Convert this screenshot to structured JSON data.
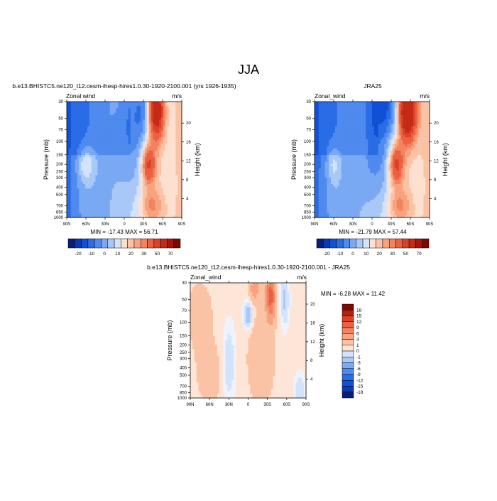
{
  "figure": {
    "title": "JJA"
  },
  "chart_data": [
    {
      "type": "heatmap",
      "title": "b.e13.BHISTC5.ne120_t12.cesm-ihesp-hires1.0.30-1920-2100.001 (yrs 1926-1935)",
      "left_label": "Zonal wind",
      "units": "m/s",
      "ylabel": "Pressure (mb)",
      "ylabel_right": "Height (km)",
      "x_ticks": [
        "90N",
        "60N",
        "30N",
        "0",
        "30S",
        "60S",
        "90S"
      ],
      "y_ticks": [
        "30",
        "50",
        "70",
        "100",
        "150",
        "200",
        "250",
        "300",
        "400",
        "500",
        "700",
        "850",
        "1000"
      ],
      "y_ticks_right": [
        "20",
        "16",
        "12",
        "8",
        "4"
      ],
      "stats": "MIN = -17.43  MAX = 56.71",
      "min": -17.43,
      "max": 56.71,
      "features": [
        {
          "lat": -40,
          "p": 35,
          "value": -20,
          "sx": 22,
          "sy": 0.75
        },
        {
          "lat": -15,
          "p": 120,
          "value": -10,
          "sx": 18,
          "sy": 1.0
        },
        {
          "lat": 60,
          "p": 200,
          "value": 15,
          "sx": 10,
          "sy": 0.38
        },
        {
          "lat": 60,
          "p": 600,
          "value": 5,
          "sx": 15,
          "sy": 0.6
        },
        {
          "lat": -50,
          "p": 40,
          "value": 70,
          "sx": 9,
          "sy": 0.6
        },
        {
          "lat": -38,
          "p": 200,
          "value": 35,
          "sx": 8,
          "sy": 0.45
        },
        {
          "lat": -42,
          "p": 700,
          "value": 15,
          "sx": 12,
          "sy": 0.35
        },
        {
          "lat": -75,
          "p": 400,
          "value": -5,
          "sx": 10,
          "sy": 1.0
        }
      ],
      "colorbar": {
        "labels": [
          "-20",
          "-10",
          "0",
          "10",
          "20",
          "30",
          "50",
          "70"
        ]
      }
    },
    {
      "type": "heatmap",
      "title": "JRA25",
      "left_label": "Zonal_wind",
      "units": "m/s",
      "ylabel": "Pressure (mb)",
      "ylabel_right": "Height (km)",
      "x_ticks": [
        "90N",
        "60N",
        "30N",
        "0",
        "30S",
        "60S",
        "90S"
      ],
      "y_ticks": [
        "30",
        "50",
        "70",
        "100",
        "150",
        "200",
        "250",
        "300",
        "400",
        "500",
        "700",
        "850",
        "1000"
      ],
      "y_ticks_right": [
        "20",
        "16",
        "12",
        "8",
        "4"
      ],
      "stats": "MIN = -21.79  MAX = 57.44",
      "min": -21.79,
      "max": 57.44,
      "features": [
        {
          "lat": -20,
          "p": 30,
          "value": -22,
          "sx": 18,
          "sy": 0.75
        },
        {
          "lat": -10,
          "p": 150,
          "value": -12,
          "sx": 18,
          "sy": 1.0
        },
        {
          "lat": 60,
          "p": 200,
          "value": 12,
          "sx": 8,
          "sy": 0.4
        },
        {
          "lat": 60,
          "p": 600,
          "value": 5,
          "sx": 15,
          "sy": 0.6
        },
        {
          "lat": -55,
          "p": 40,
          "value": 70,
          "sx": 9,
          "sy": 0.6
        },
        {
          "lat": -38,
          "p": 200,
          "value": 35,
          "sx": 8,
          "sy": 0.45
        },
        {
          "lat": -42,
          "p": 700,
          "value": 15,
          "sx": 12,
          "sy": 0.35
        },
        {
          "lat": -75,
          "p": 400,
          "value": -5,
          "sx": 10,
          "sy": 1.0
        }
      ],
      "colorbar": {
        "labels": [
          "-20",
          "-10",
          "0",
          "10",
          "20",
          "30",
          "50",
          "70"
        ]
      }
    },
    {
      "type": "heatmap",
      "title": "b.e13.BHISTC5.ne120_t12.cesm-ihesp-hires1.0.30-1920-2100.001 - JRA25",
      "left_label": "Zonal_wind",
      "units": "m/s",
      "ylabel": "Pressure (mb)",
      "ylabel_right": "Height (km)",
      "x_ticks": [
        "90N",
        "60N",
        "30N",
        "0",
        "30S",
        "60S",
        "90S"
      ],
      "y_ticks": [
        "30",
        "50",
        "70",
        "100",
        "150",
        "200",
        "250",
        "300",
        "400",
        "500",
        "700",
        "850",
        "1000"
      ],
      "y_ticks_right": [
        "20",
        "16",
        "12",
        "8",
        "4"
      ],
      "stats": "MIN =  -6.28  MAX =  11.42",
      "min": -6.28,
      "max": 11.42,
      "features": [
        {
          "lat": 0,
          "p": 80,
          "value": -6,
          "sx": 4,
          "sy": 0.25
        },
        {
          "lat": -35,
          "p": 45,
          "value": 10,
          "sx": 5,
          "sy": 0.5
        },
        {
          "lat": -10,
          "p": 35,
          "value": 5,
          "sx": 5,
          "sy": 0.25
        },
        {
          "lat": -57,
          "p": 50,
          "value": -4,
          "sx": 4,
          "sy": 0.5
        },
        {
          "lat": 30,
          "p": 350,
          "value": -3,
          "sx": 6,
          "sy": 0.7
        },
        {
          "lat": 75,
          "p": 80,
          "value": 1.5,
          "sx": 15,
          "sy": 0.8
        },
        {
          "lat": -20,
          "p": 300,
          "value": 2,
          "sx": 15,
          "sy": 1.0
        },
        {
          "lat": 60,
          "p": 500,
          "value": 1.5,
          "sx": 15,
          "sy": 0.7
        },
        {
          "lat": -80,
          "p": 800,
          "value": -3,
          "sx": 5,
          "sy": 0.3
        }
      ],
      "colorbar": {
        "labels": [
          "18",
          "15",
          "12",
          "9",
          "6",
          "3",
          "1",
          "0",
          "-1",
          "-3",
          "-6",
          "-9",
          "-12",
          "-15",
          "-18"
        ]
      }
    }
  ],
  "colors": {
    "abs_levels": [
      -25,
      -20,
      -15,
      -10,
      -5,
      0,
      5,
      10,
      15,
      20,
      25,
      30,
      40,
      50,
      60,
      70,
      80
    ],
    "abs_palette": [
      "#06207a",
      "#0a3ab0",
      "#1050d6",
      "#2a6ce6",
      "#4f8aee",
      "#7aa9f3",
      "#a8c8f8",
      "#d3e3fb",
      "#fde0cf",
      "#fbc3a6",
      "#f8a37f",
      "#f3825f",
      "#ea6041",
      "#db4128",
      "#c42b16",
      "#a5170a",
      "#7f0803"
    ],
    "diff_levels": [
      -21,
      -18,
      -15,
      -12,
      -9,
      -6,
      -3,
      -1,
      0,
      1,
      3,
      6,
      9,
      12,
      15,
      18,
      21
    ],
    "diff_palette": [
      "#06207a",
      "#0a3ab0",
      "#1050d6",
      "#2a6ce6",
      "#4f8aee",
      "#7aa9f3",
      "#a8c8f8",
      "#d3e3fb",
      "#eef3fd",
      "#fde6d7",
      "#fbc3a6",
      "#f8a37f",
      "#f3825f",
      "#ea6041",
      "#db4128",
      "#b3200d",
      "#7f0803"
    ]
  }
}
